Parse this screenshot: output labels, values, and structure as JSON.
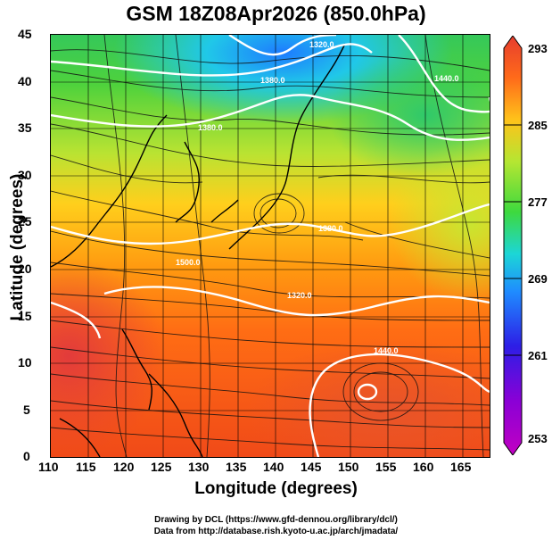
{
  "title": "GSM 18Z08Apr2026 (850.0hPa)",
  "x_axis": {
    "label": "Longitude (degrees)",
    "ticks": [
      "110",
      "115",
      "120",
      "125",
      "130",
      "135",
      "140",
      "145",
      "150",
      "155",
      "160",
      "165"
    ]
  },
  "y_axis": {
    "label": "Latitude  (degrees)",
    "ticks": [
      "0",
      "5",
      "10",
      "15",
      "20",
      "25",
      "30",
      "35",
      "40",
      "45"
    ]
  },
  "colorbar": {
    "ticks": [
      "253",
      "261",
      "269",
      "277",
      "285",
      "293"
    ],
    "colors": [
      "#c200c2",
      "#3b00e6",
      "#1f80ff",
      "#1cd6d6",
      "#3ed93e",
      "#b5e632",
      "#ffc21a",
      "#ff6a1a",
      "#e63d2e"
    ]
  },
  "contour_labels": [
    "1320.0",
    "1380.0",
    "1440.0",
    "1500.0",
    "1320.0",
    "1380.0",
    "1380.0",
    "1440.0"
  ],
  "credits": {
    "line1": "Drawing by DCL (https://www.gfd-dennou.org/library/dcl/)",
    "line2": "Data from http://database.rish.kyoto-u.ac.jp/arch/jmadata/"
  }
}
